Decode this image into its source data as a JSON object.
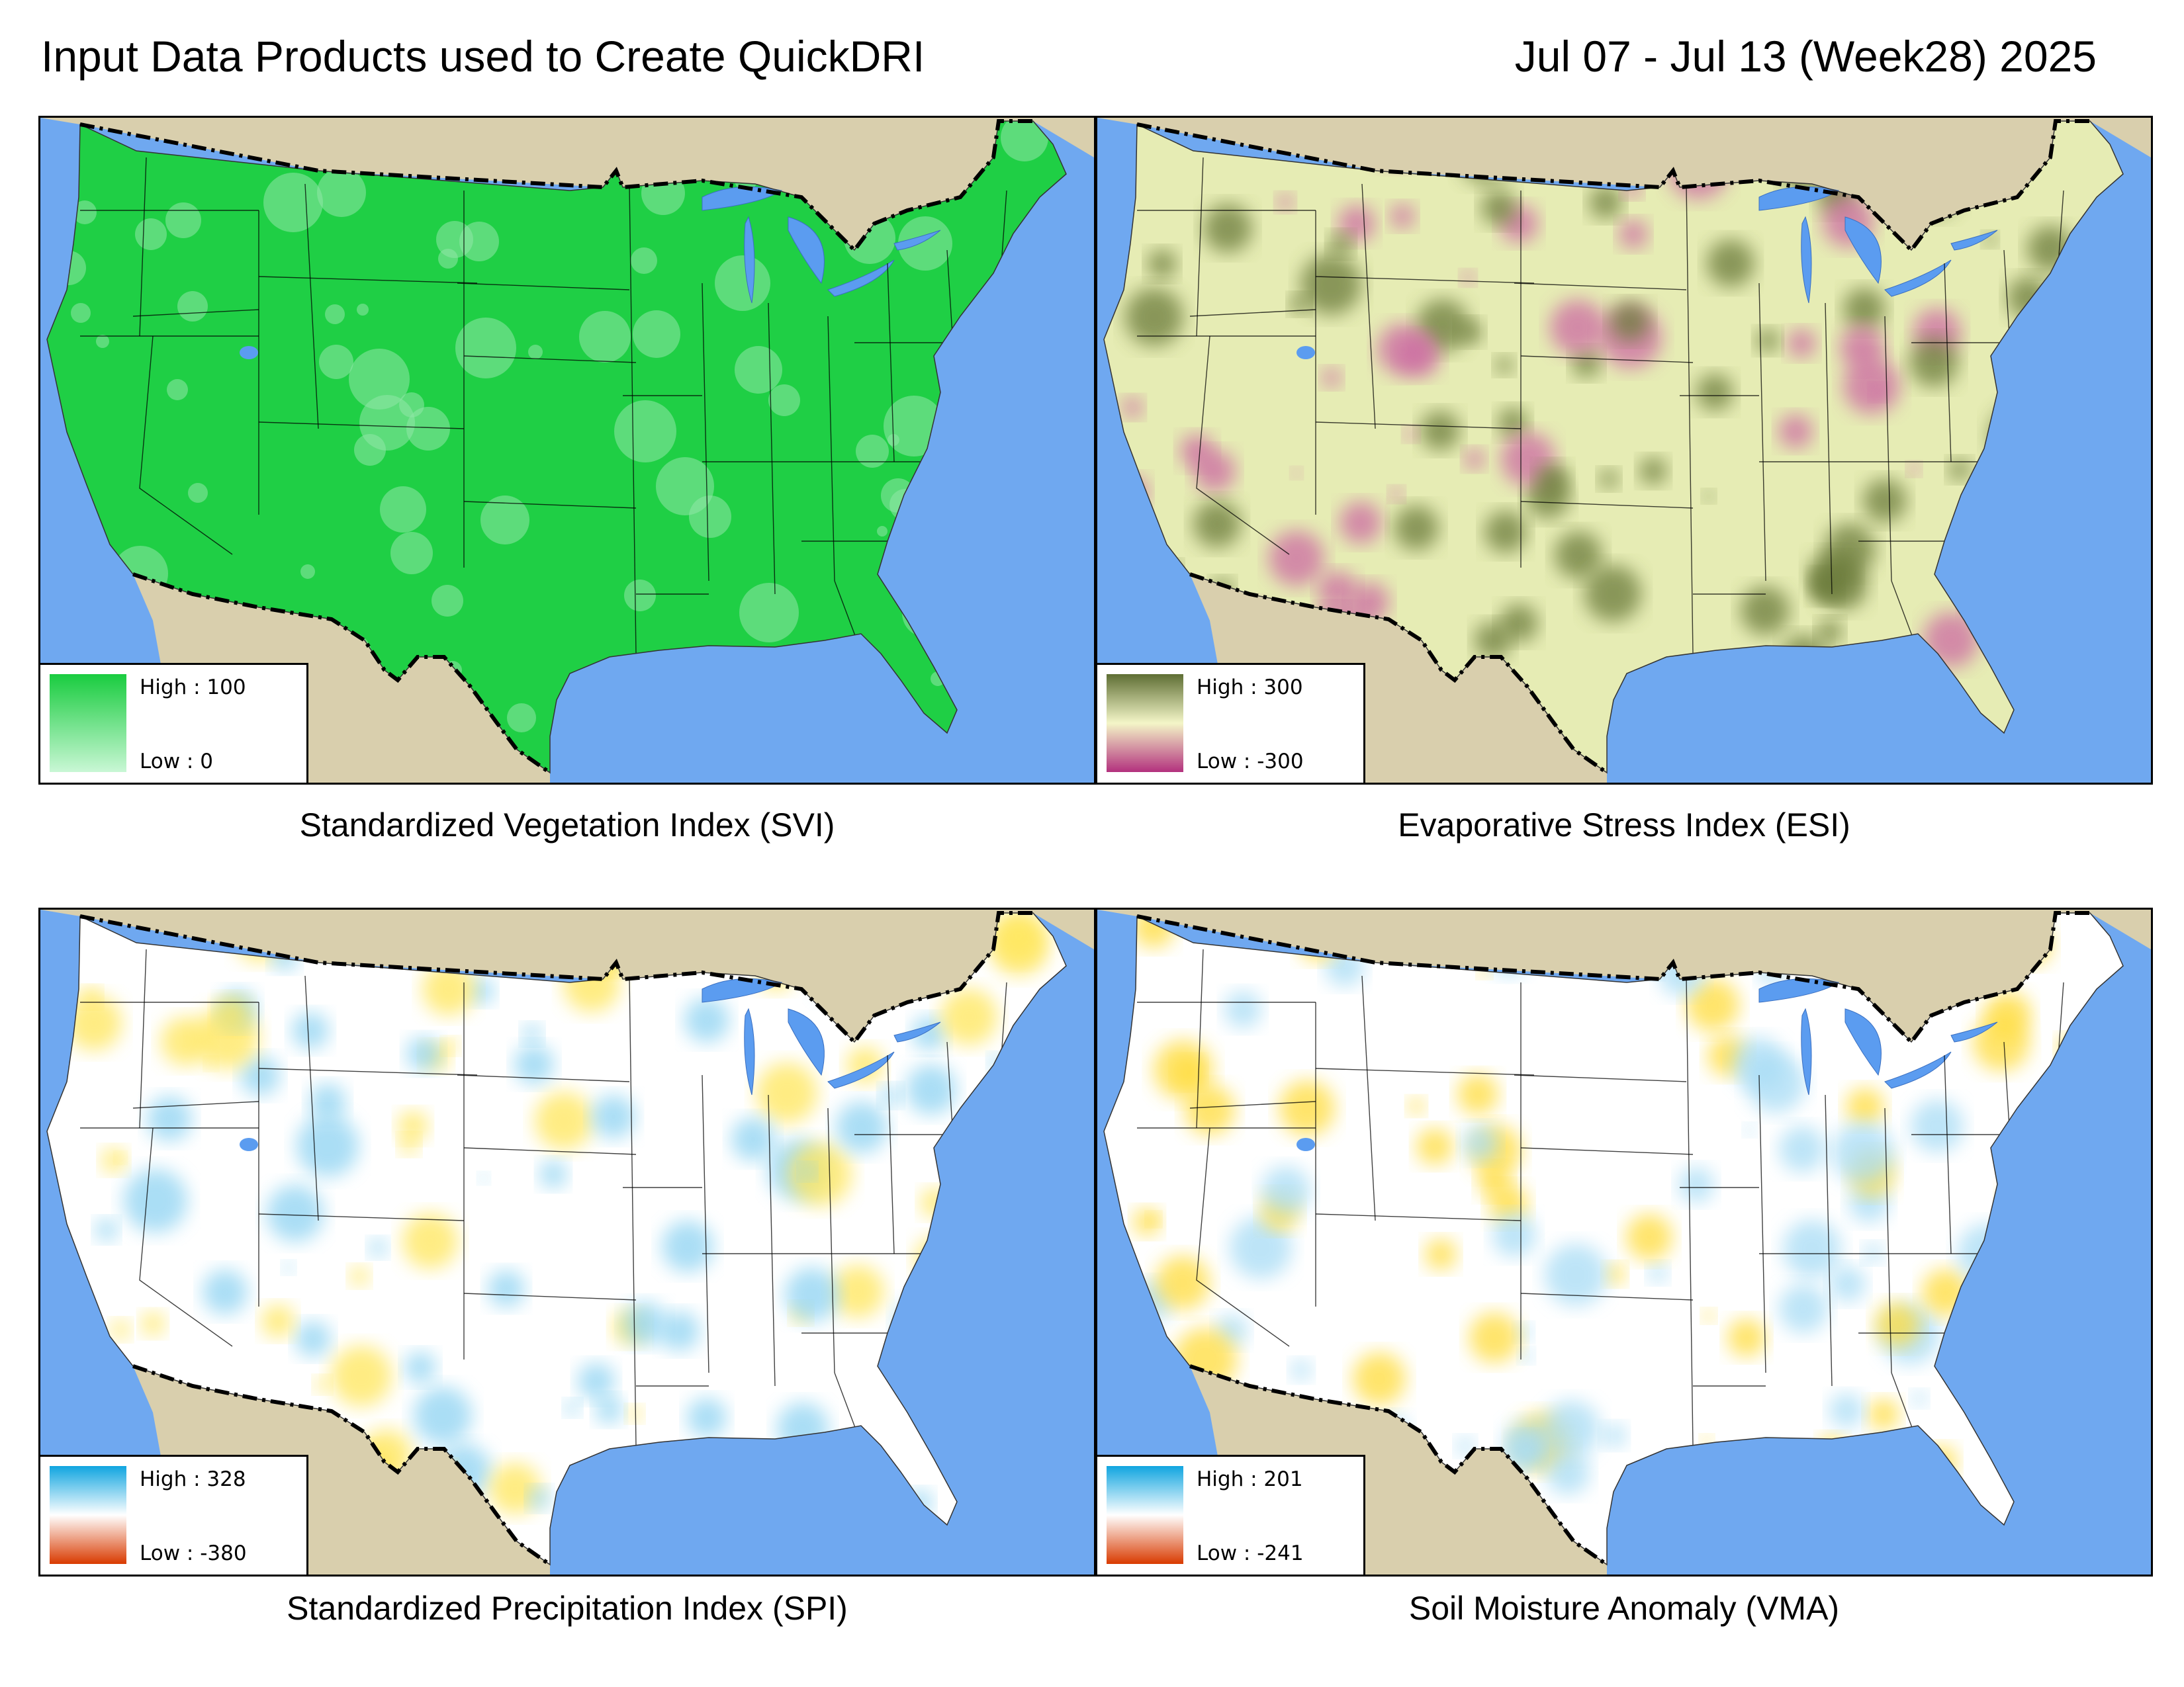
{
  "header": {
    "title": "Input Data Products used to Create QuickDRI",
    "date_range": "Jul 07 - Jul 13 (Week28) 2025"
  },
  "panels": [
    {
      "id": "svi",
      "caption": "Standardized Vegetation Index (SVI)",
      "legend": {
        "high_label": "High : 100",
        "low_label": "Low : 0"
      },
      "colors": {
        "high": "#19cc3f",
        "low": "#c9f7d5",
        "fill": "#1fcf45",
        "patch": "#8fe8a8"
      }
    },
    {
      "id": "esi",
      "caption": "Evaporative Stress Index (ESI)",
      "legend": {
        "high_label": "High : 300",
        "low_label": "Low : -300"
      },
      "colors": {
        "high": "#5e6e34",
        "mid": "#f4f6c8",
        "low": "#b3317e",
        "fill": "#e6ecb4",
        "patch": "#6b7a3a",
        "accent": "#cc6aa3"
      }
    },
    {
      "id": "spi",
      "caption": "Standardized Precipitation Index (SPI)",
      "legend": {
        "high_label": "High : 328",
        "low_label": "Low : -380"
      },
      "colors": {
        "high": "#10a5e0",
        "mid": "#ffffff",
        "low": "#d93a00",
        "fill": "#ffffff",
        "patch": "#8ed3f2",
        "accent": "#ffe65a"
      }
    },
    {
      "id": "vma",
      "caption": "Soil Moisture Anomaly (VMA)",
      "legend": {
        "high_label": "High : 201",
        "low_label": "Low : -241"
      },
      "colors": {
        "high": "#10a5e0",
        "mid": "#ffffff",
        "low": "#d93a00",
        "fill": "#ffffff",
        "patch": "#a7dcf5",
        "accent": "#ffdc3a"
      }
    }
  ],
  "basemap_colors": {
    "ocean": "#6fa8f0",
    "land_outside": "#d9cfad",
    "lakes": "#5b9cf0",
    "border": "#000000"
  }
}
